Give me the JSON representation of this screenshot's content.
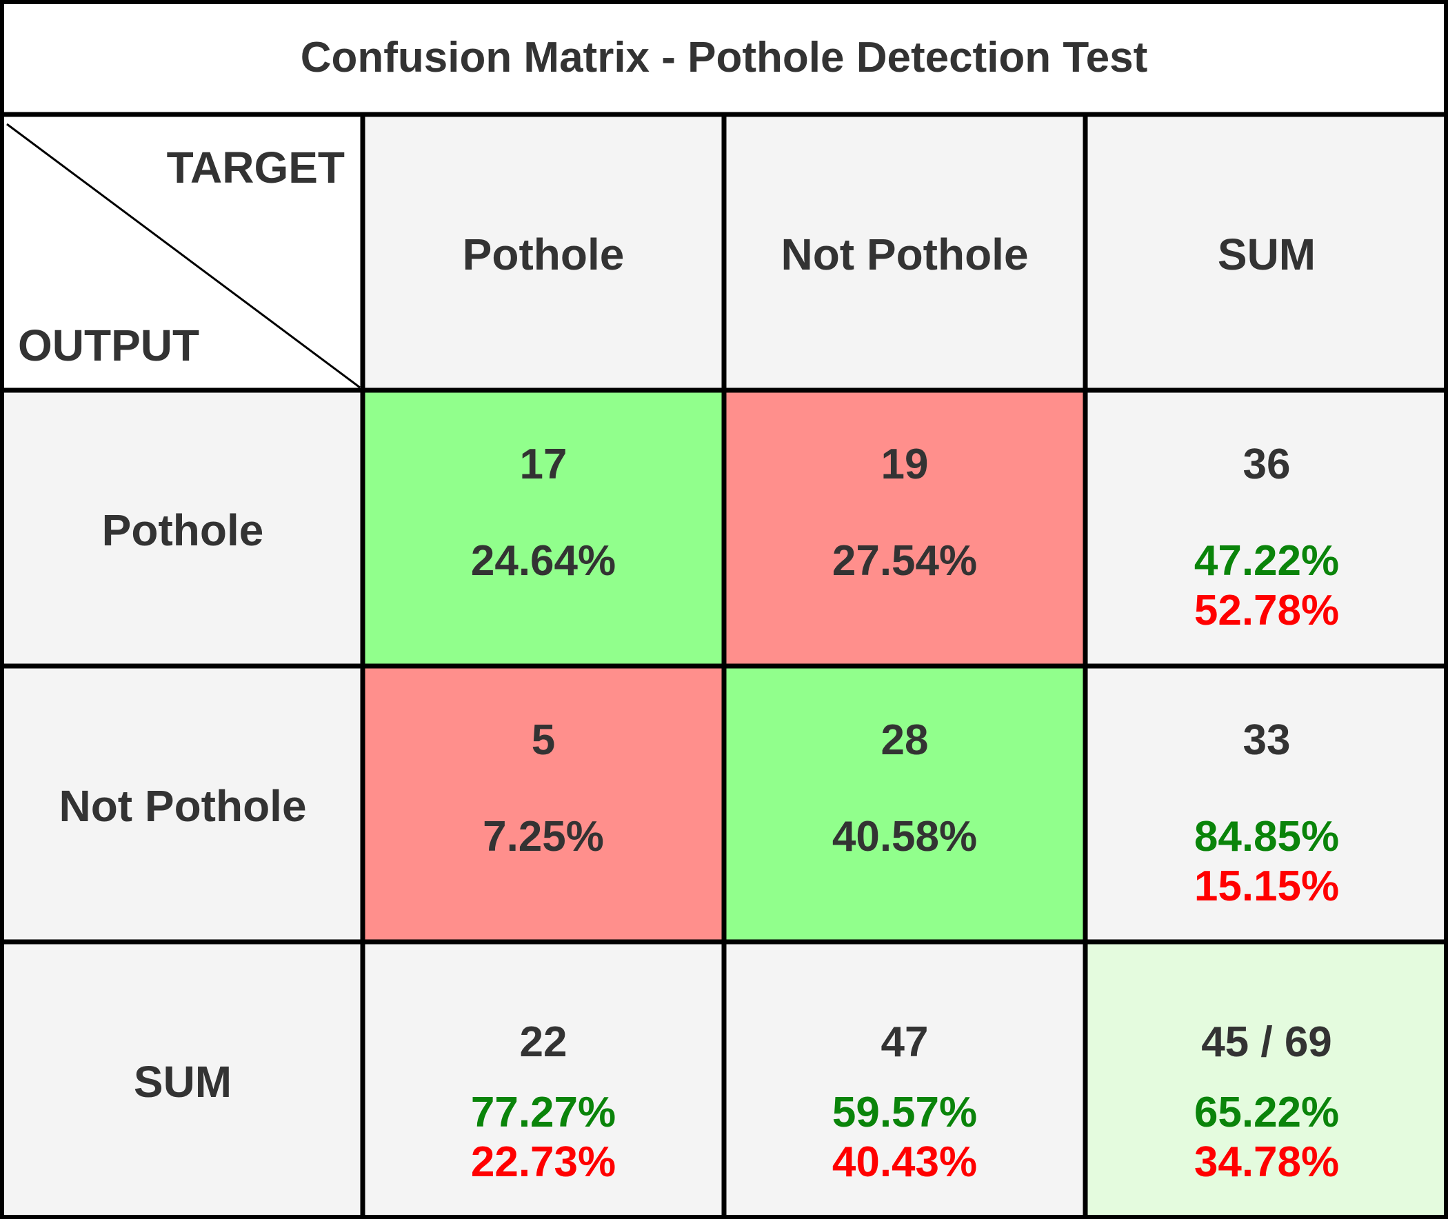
{
  "chart_data": {
    "type": "table",
    "title": "Confusion Matrix - Pothole Detection Test",
    "corner": {
      "target_label": "TARGET",
      "output_label": "OUTPUT"
    },
    "column_headers": [
      "Pothole",
      "Not Pothole",
      "SUM"
    ],
    "row_headers": [
      "Pothole",
      "Not Pothole",
      "SUM"
    ],
    "cells": [
      [
        {
          "count": "17",
          "pct": "24.64%",
          "kind": "correct"
        },
        {
          "count": "19",
          "pct": "27.54%",
          "kind": "error"
        },
        {
          "count": "36",
          "good": "47.22%",
          "bad": "52.78%",
          "kind": "sum"
        }
      ],
      [
        {
          "count": "5",
          "pct": "7.25%",
          "kind": "error"
        },
        {
          "count": "28",
          "pct": "40.58%",
          "kind": "correct"
        },
        {
          "count": "33",
          "good": "84.85%",
          "bad": "15.15%",
          "kind": "sum"
        }
      ],
      [
        {
          "count": "22",
          "good": "77.27%",
          "bad": "22.73%",
          "kind": "sum"
        },
        {
          "count": "47",
          "good": "59.57%",
          "bad": "40.43%",
          "kind": "sum"
        },
        {
          "count": "45 / 69",
          "good": "65.22%",
          "bad": "34.78%",
          "kind": "total"
        }
      ]
    ],
    "colors": {
      "correct": "#91ff8c",
      "error": "#ff8f8c",
      "header": "#f4f4f4",
      "total": "#e4fbde",
      "good_text": "#0a840a",
      "bad_text": "#ff0000",
      "text": "#333333",
      "border": "#000000"
    }
  }
}
